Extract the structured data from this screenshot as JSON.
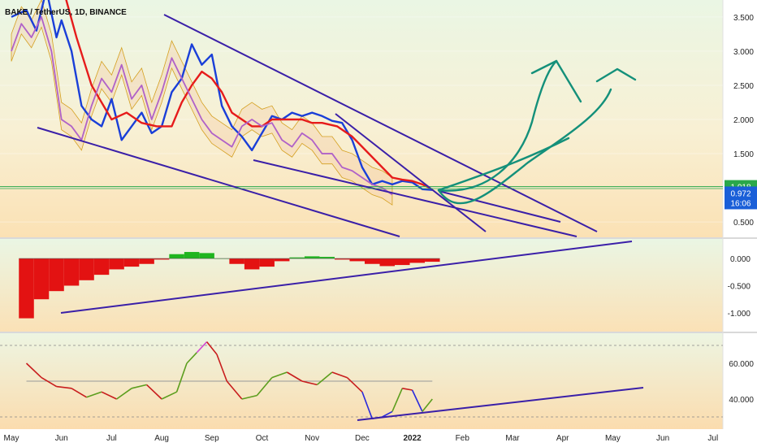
{
  "header": {
    "title": "BAKE / TetherUS, 1D, BINANCE"
  },
  "colors": {
    "price_line": "#1a3fd8",
    "kijun": "#e61b1b",
    "lagging": "#b061c8",
    "cloud_edge": "#d4a020",
    "trendline": "#3a1fa8",
    "drawing": "#14907a",
    "osc_neg": "#e31212",
    "osc_pos": "#1fb51f",
    "rsi_up": "#5c9e1e",
    "rsi_down": "#c81d1d",
    "rsi_low": "#2a2adc",
    "rsi_high": "#d24ad2",
    "level_line": "#2aa84a",
    "price_tag": "#1a5fd8",
    "level_tag": "#2aa84a"
  },
  "chart_data": [
    {
      "type": "line",
      "name": "price-pane",
      "x_axis_labels": [
        "May",
        "Jun",
        "Jul",
        "Aug",
        "Sep",
        "Oct",
        "Nov",
        "Dec",
        "2022",
        "Feb",
        "Mar",
        "Apr",
        "May",
        "Jun",
        "Jul"
      ],
      "y_tick_labels": [
        "3.500",
        "3.000",
        "2.500",
        "2.000",
        "1.500",
        "1.000",
        "0.500"
      ],
      "ylim": [
        0.3,
        3.7
      ],
      "current_tag": {
        "value": "0.972",
        "countdown": "16:06"
      },
      "level_tag": {
        "value": "1.018"
      },
      "series": [
        {
          "name": "",
          "x_months": [
            0.0,
            0.3,
            0.5,
            0.7,
            0.9,
            1.0,
            1.2,
            1.4,
            1.6,
            1.8,
            2.0,
            2.2,
            2.4,
            2.6,
            2.8,
            3.0,
            3.2,
            3.4,
            3.6,
            3.8,
            4.0,
            4.2,
            4.4,
            4.6,
            4.8,
            5.0,
            5.2,
            5.4,
            5.6,
            5.8,
            6.0,
            6.2,
            6.4,
            6.6,
            6.8,
            7.0,
            7.2,
            7.4,
            7.6,
            7.8,
            8.0,
            8.2,
            8.4
          ],
          "y": [
            3.5,
            3.6,
            3.3,
            3.9,
            3.2,
            3.45,
            3.0,
            2.2,
            2.0,
            1.9,
            2.3,
            1.7,
            1.9,
            2.1,
            1.8,
            1.9,
            2.4,
            2.6,
            3.1,
            2.8,
            2.95,
            2.2,
            1.9,
            1.75,
            1.55,
            1.8,
            2.05,
            2.0,
            2.1,
            2.05,
            2.1,
            2.05,
            1.98,
            1.95,
            1.7,
            1.3,
            1.05,
            1.1,
            1.05,
            1.1,
            1.08,
            0.98,
            0.97
          ]
        },
        {
          "name": "",
          "x_months": [
            1.0,
            1.3,
            1.6,
            2.0,
            2.3,
            2.6,
            2.9,
            3.2,
            3.4,
            3.6,
            3.8,
            4.0,
            4.2,
            4.4,
            4.6,
            4.8,
            5.0,
            5.2,
            5.5,
            5.8,
            6.0,
            6.2,
            6.5,
            6.8,
            7.0,
            7.2,
            7.4,
            7.6,
            7.8,
            8.0,
            8.2,
            8.35
          ],
          "y": [
            4.0,
            3.2,
            2.5,
            2.0,
            2.1,
            1.95,
            1.9,
            1.9,
            2.25,
            2.5,
            2.7,
            2.6,
            2.4,
            2.1,
            2.0,
            1.9,
            1.9,
            2.0,
            2.0,
            2.0,
            1.95,
            1.95,
            1.9,
            1.75,
            1.6,
            1.45,
            1.3,
            1.15,
            1.12,
            1.1,
            1.05,
            1.0
          ]
        },
        {
          "name": "",
          "x_months": [
            0.0,
            0.2,
            0.4,
            0.6,
            0.8,
            1.0,
            1.2,
            1.4,
            1.6,
            1.8,
            2.0,
            2.2,
            2.4,
            2.6,
            2.8,
            3.0,
            3.2,
            3.4,
            3.6,
            3.8,
            4.0,
            4.2,
            4.4,
            4.6,
            4.8,
            5.0,
            5.2,
            5.4,
            5.6,
            5.8,
            6.0,
            6.2,
            6.4,
            6.6,
            6.8,
            7.0,
            7.2,
            7.4,
            7.6
          ],
          "y": [
            3.0,
            3.4,
            3.2,
            3.5,
            3.0,
            2.0,
            1.9,
            1.7,
            2.2,
            2.6,
            2.4,
            2.8,
            2.3,
            2.5,
            2.0,
            2.4,
            2.9,
            2.6,
            2.3,
            2.0,
            1.8,
            1.7,
            1.6,
            1.9,
            2.0,
            1.9,
            1.95,
            1.7,
            1.6,
            1.8,
            1.7,
            1.5,
            1.5,
            1.3,
            1.25,
            1.15,
            1.05,
            1.0,
            0.9
          ]
        }
      ]
    },
    {
      "type": "bar",
      "name": "oscillator-pane",
      "y_tick_labels": [
        "0.000",
        "-0.500",
        "-1.000"
      ],
      "ylim": [
        -1.3,
        0.3
      ],
      "x_months": [
        0.3,
        0.6,
        0.9,
        1.2,
        1.5,
        1.8,
        2.1,
        2.4,
        2.7,
        3.0,
        3.3,
        3.6,
        3.9,
        4.2,
        4.5,
        4.8,
        5.1,
        5.4,
        5.7,
        6.0,
        6.3,
        6.6,
        6.9,
        7.2,
        7.5,
        7.8,
        8.1,
        8.4
      ],
      "values": [
        -1.1,
        -0.75,
        -0.6,
        -0.5,
        -0.4,
        -0.3,
        -0.2,
        -0.15,
        -0.1,
        -0.02,
        0.08,
        0.12,
        0.1,
        0.0,
        -0.1,
        -0.2,
        -0.15,
        -0.05,
        0.02,
        0.04,
        0.03,
        -0.02,
        -0.05,
        -0.1,
        -0.14,
        -0.12,
        -0.08,
        -0.06
      ]
    },
    {
      "type": "line",
      "name": "rsi-pane",
      "y_tick_labels": [
        "60.000",
        "40.000"
      ],
      "ylim": [
        25,
        75
      ],
      "x_months": [
        0.3,
        0.6,
        0.9,
        1.2,
        1.5,
        1.8,
        2.1,
        2.4,
        2.7,
        3.0,
        3.3,
        3.5,
        3.7,
        3.9,
        4.1,
        4.3,
        4.6,
        4.9,
        5.2,
        5.5,
        5.8,
        6.1,
        6.4,
        6.7,
        7.0,
        7.2,
        7.4,
        7.6,
        7.8,
        8.0,
        8.2,
        8.4
      ],
      "values": [
        60,
        52,
        47,
        46,
        41,
        44,
        40,
        46,
        48,
        40,
        44,
        60,
        66,
        72,
        65,
        50,
        40,
        42,
        52,
        55,
        50,
        48,
        55,
        52,
        44,
        29,
        30,
        33,
        46,
        45,
        33,
        40
      ]
    }
  ]
}
